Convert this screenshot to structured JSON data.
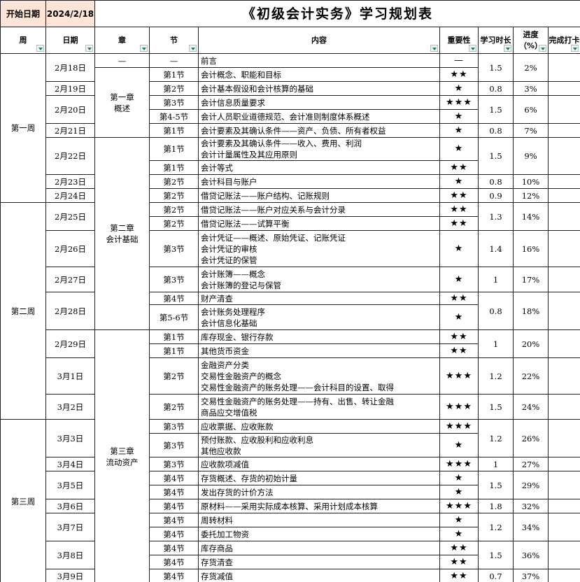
{
  "header": {
    "start_label": "开始日期",
    "start_date": "2024/2/18",
    "title": "《初级会计实务》学习规划表"
  },
  "columns": [
    "周",
    "日期",
    "章",
    "节",
    "内容",
    "重要性",
    "学习时长",
    "进度（%）",
    "完成打卡"
  ],
  "weeks": [
    "第一周",
    "第二周",
    "第三周"
  ],
  "chapters": [
    [
      "—"
    ],
    [
      "第一章",
      "概述"
    ],
    [
      "第二章",
      "会计基础"
    ],
    [
      "第三章",
      "流动资产"
    ]
  ],
  "dates": [
    {
      "date": "2月18日",
      "hours": 1.5,
      "progress": "2%"
    },
    {
      "date": "2月19日",
      "hours": 0.8,
      "progress": "3%"
    },
    {
      "date": "2月20日",
      "hours": 1.5,
      "progress": "6%"
    },
    {
      "date": "2月21日",
      "hours": 0.8,
      "progress": "7%"
    },
    {
      "date": "2月22日",
      "hours": 1.5,
      "progress": "9%"
    },
    {
      "date": "2月23日",
      "hours": 0.8,
      "progress": "10%"
    },
    {
      "date": "2月24日",
      "hours": 0.9,
      "progress": "12%"
    },
    {
      "date": "2月25日",
      "hours": 1.3,
      "progress": "14%"
    },
    {
      "date": "2月26日",
      "hours": 1.4,
      "progress": "16%"
    },
    {
      "date": "2月27日",
      "hours": 1,
      "progress": "17%"
    },
    {
      "date": "2月28日",
      "hours": 0.8,
      "progress": "18%"
    },
    {
      "date": "2月29日",
      "hours": 1,
      "progress": "20%"
    },
    {
      "date": "3月1日",
      "hours": 1.2,
      "progress": "22%"
    },
    {
      "date": "3月2日",
      "hours": 1.5,
      "progress": "24%"
    },
    {
      "date": "3月3日",
      "hours": 1.2,
      "progress": "26%"
    },
    {
      "date": "3月4日",
      "hours": 1,
      "progress": "27%"
    },
    {
      "date": "3月5日",
      "hours": 1.5,
      "progress": "29%"
    },
    {
      "date": "3月6日",
      "hours": 1.8,
      "progress": "32%"
    },
    {
      "date": "3月7日",
      "hours": 1.2,
      "progress": "34%"
    },
    {
      "date": "3月8日",
      "hours": 1.5,
      "progress": "36%"
    },
    {
      "date": "3月9日",
      "hours": 0.7,
      "progress": "37%"
    }
  ],
  "rows": [
    {
      "section": "—",
      "content": [
        "前言"
      ],
      "importance": "—"
    },
    {
      "section": "第1节",
      "content": [
        "会计概念、职能和目标"
      ],
      "importance": "★★"
    },
    {
      "section": "第2节",
      "content": [
        "会计基本假设和会计核算的基础"
      ],
      "importance": "★"
    },
    {
      "section": "第3节",
      "content": [
        "会计信息质量要求"
      ],
      "importance": "★★★"
    },
    {
      "section": "第4-5节",
      "content": [
        "会计人员职业道德规范、会计准则制度体系概述"
      ],
      "importance": "★"
    },
    {
      "section": "第1节",
      "content": [
        "会计要素及其确认条件——资产、负债、所有者权益"
      ],
      "importance": "★"
    },
    {
      "section": "第1节",
      "content": [
        "会计要素及其确认条件——收入、费用、利润",
        "会计计量属性及其应用原则"
      ],
      "importance": "★"
    },
    {
      "section": "第1节",
      "content": [
        "会计等式"
      ],
      "importance": "★★"
    },
    {
      "section": "第2节",
      "content": [
        "会计科目与账户"
      ],
      "importance": "★"
    },
    {
      "section": "第2节",
      "content": [
        "借贷记账法——账户结构、记账规则"
      ],
      "importance": "★★"
    },
    {
      "section": "第2节",
      "content": [
        "借贷记账法——账户对应关系与会计分录"
      ],
      "importance": "★★"
    },
    {
      "section": "第2节",
      "content": [
        "借贷记账法——试算平衡"
      ],
      "importance": "★★"
    },
    {
      "section": "第3节",
      "content": [
        "会计凭证——概述、原始凭证、记账凭证",
        "会计凭证的审核",
        "会计凭证的保管"
      ],
      "importance": "★"
    },
    {
      "section": "第3节",
      "content": [
        "会计账簿——概念",
        "会计账簿的登记与保管"
      ],
      "importance": "★"
    },
    {
      "section": "第4节",
      "content": [
        "财产清查"
      ],
      "importance": "★★"
    },
    {
      "section": "第5-6节",
      "content": [
        "会计账务处理程序",
        "会计信息化基础"
      ],
      "importance": "★"
    },
    {
      "section": "第1节",
      "content": [
        "库存现金、银行存款"
      ],
      "importance": "★★"
    },
    {
      "section": "第1节",
      "content": [
        "其他货币资金"
      ],
      "importance": "★★"
    },
    {
      "section": "第2节",
      "content": [
        "金融资产分类",
        "交易性金融资产的概念",
        "交易性金融资产的账务处理——会计科目的设置、取得"
      ],
      "importance": "★★★"
    },
    {
      "section": "第2节",
      "content": [
        "交易性金融资产的账务处理——持有、出售、转让金融",
        "商品应交增值税"
      ],
      "importance": "★★★"
    },
    {
      "section": "第3节",
      "content": [
        "应收票据、应收账款"
      ],
      "importance": "★★★"
    },
    {
      "section": "第3节",
      "content": [
        "预付账款、应收股利和应收利息",
        "其他应收款"
      ],
      "importance": "★"
    },
    {
      "section": "第3节",
      "content": [
        "应收款项减值"
      ],
      "importance": "★★★"
    },
    {
      "section": "第4节",
      "content": [
        "存货概述、存货的初始计量"
      ],
      "importance": "★"
    },
    {
      "section": "第4节",
      "content": [
        "发出存货的计价方法"
      ],
      "importance": "★"
    },
    {
      "section": "第4节",
      "content": [
        "原材料——采用实际成本核算、采用计划成本核算"
      ],
      "importance": "★★★"
    },
    {
      "section": "第4节",
      "content": [
        "周转材料"
      ],
      "importance": "★"
    },
    {
      "section": "第4节",
      "content": [
        "委托加工物资"
      ],
      "importance": "★"
    },
    {
      "section": "第4节",
      "content": [
        "库存商品"
      ],
      "importance": "★★"
    },
    {
      "section": "第4节",
      "content": [
        "存货清查"
      ],
      "importance": "★★"
    },
    {
      "section": "第4节",
      "content": [
        "存货减值"
      ],
      "importance": "★★"
    }
  ]
}
